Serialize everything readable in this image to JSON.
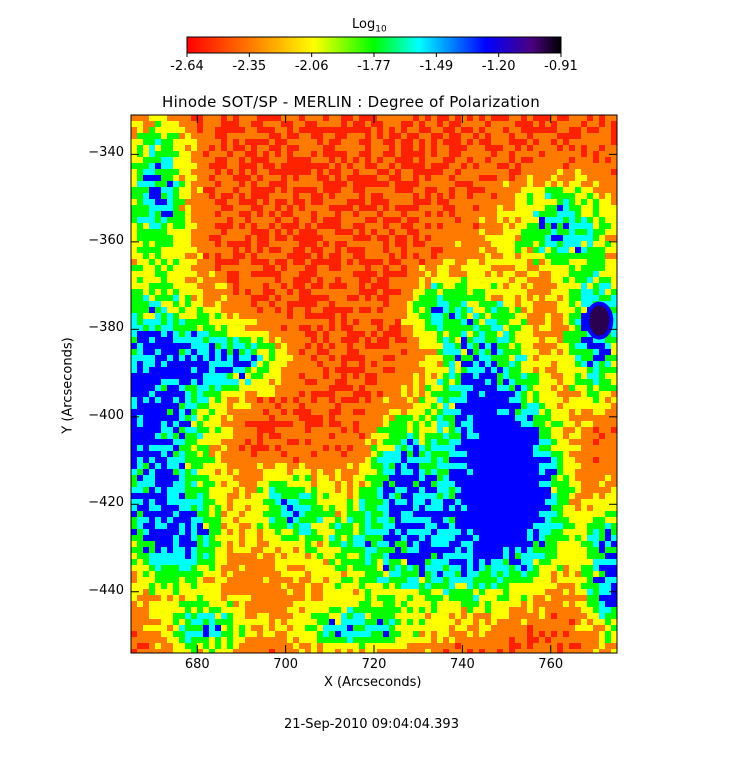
{
  "chart_data": {
    "type": "heatmap",
    "title": "Hinode SOT/SP - MERLIN : Degree of Polarization",
    "xlabel": "X (Arcseconds)",
    "ylabel": "Y (Arcseconds)",
    "xlim": [
      665,
      775
    ],
    "ylim": [
      -454,
      -331
    ],
    "x_ticks": [
      680,
      700,
      720,
      740,
      760
    ],
    "y_ticks": [
      -340,
      -360,
      -380,
      -400,
      -420,
      -440
    ],
    "colorbar": {
      "label": "Log",
      "label_subscript": "10",
      "range": [
        -2.64,
        -0.91
      ],
      "ticks": [
        "-2.64",
        "-2.35",
        "-2.06",
        "-1.77",
        "-1.49",
        "-1.20",
        "-0.91"
      ],
      "colormap": [
        "#ff0000",
        "#ff7a00",
        "#ffff00",
        "#00ff00",
        "#00ffff",
        "#0000ff",
        "#000000"
      ]
    },
    "grid": false
  },
  "timestamp": "21-Sep-2010 09:04:04.393"
}
